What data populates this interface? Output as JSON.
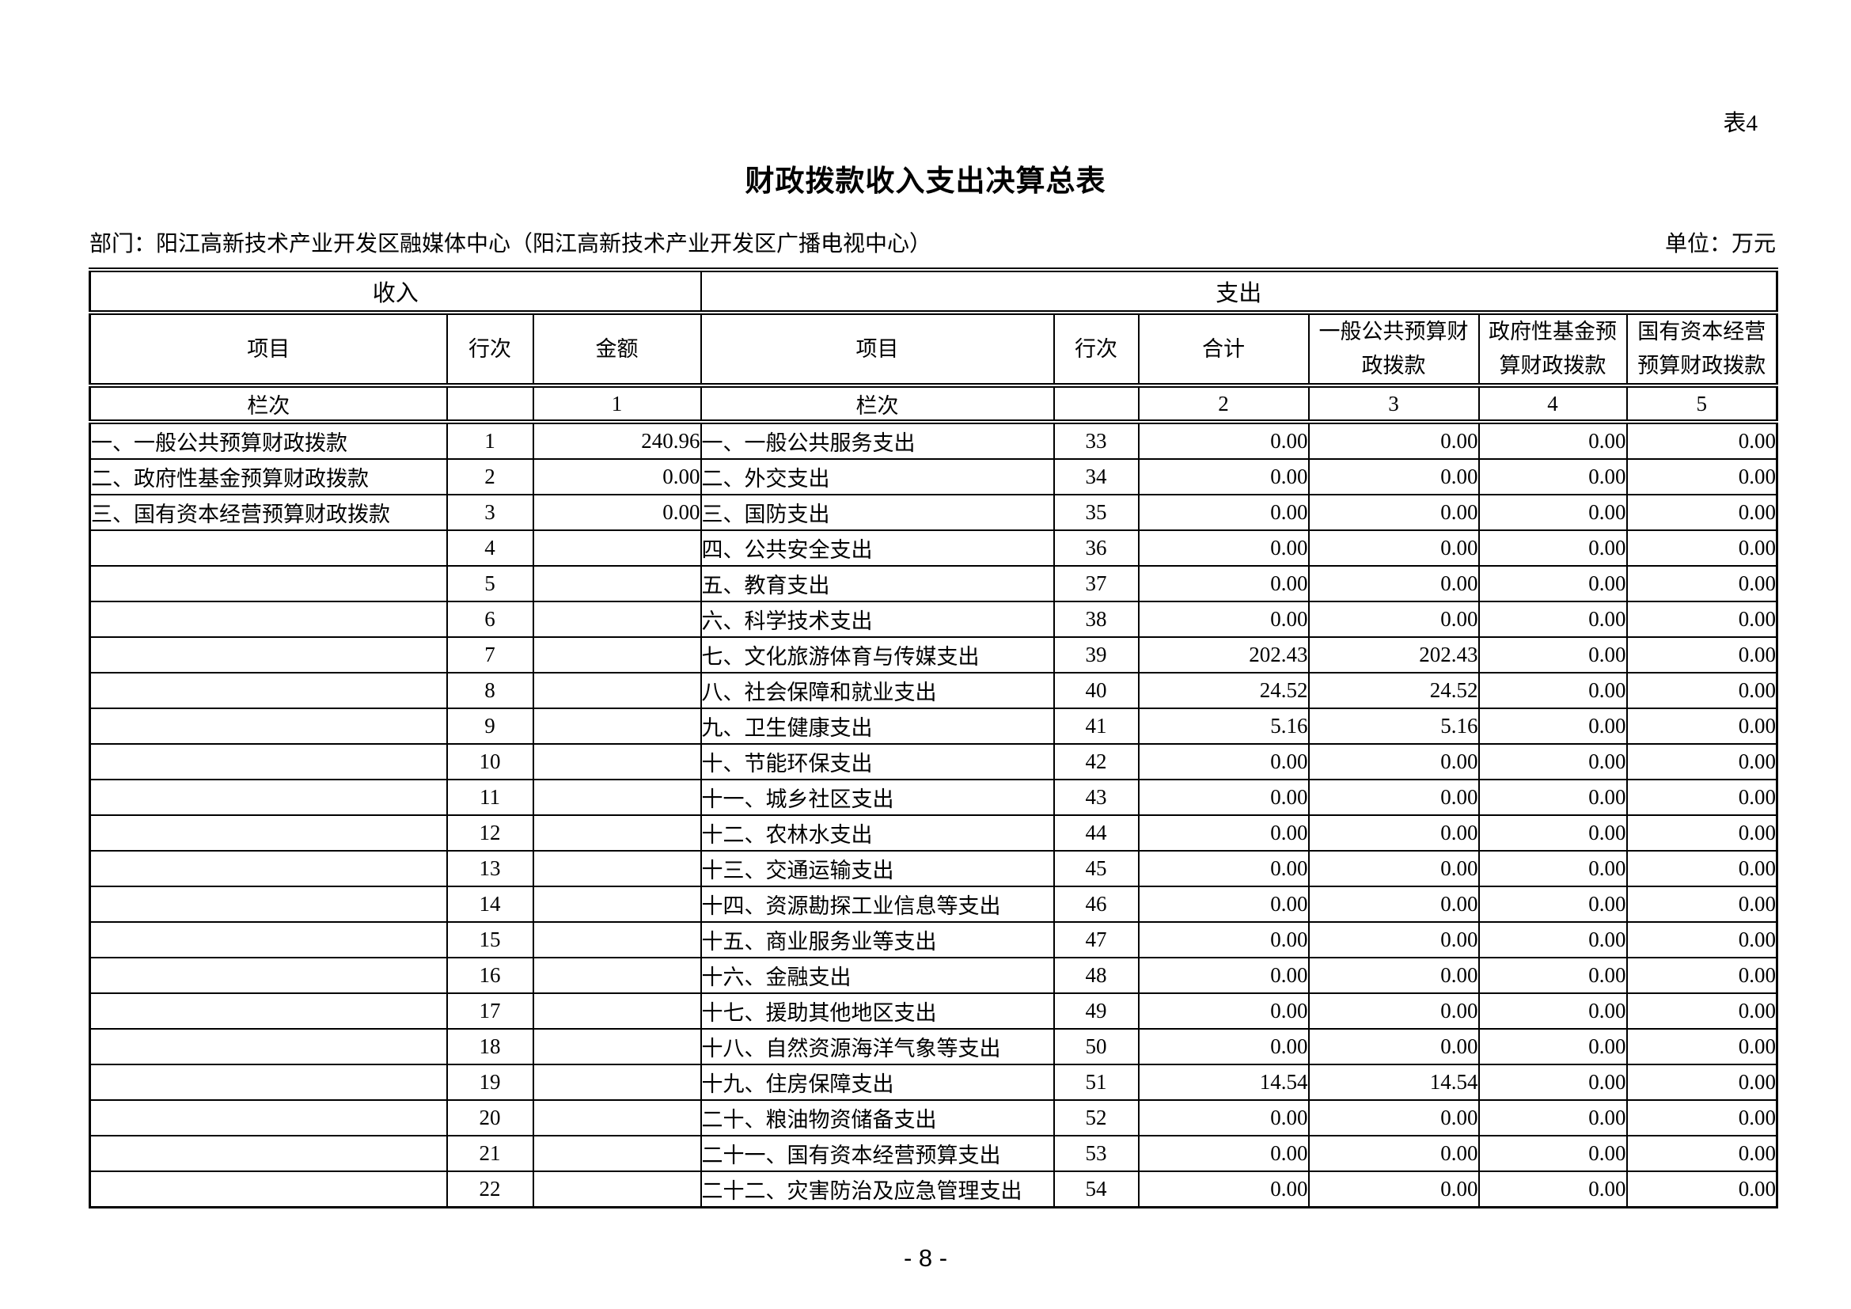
{
  "page": {
    "sheet_label": "表4",
    "title": "财政拨款收入支出决算总表",
    "department_label": "部门：阳江高新技术产业开发区融媒体中心（阳江高新技术产业开发区广播电视中心）",
    "unit_label": "单位：万元",
    "page_number": "- 8 -"
  },
  "table": {
    "sections": {
      "income": "收入",
      "expense": "支出"
    },
    "headers": {
      "income_item": "项目",
      "income_line": "行次",
      "income_amount": "金额",
      "expense_item": "项目",
      "expense_line": "行次",
      "expense_total": "合计",
      "expense_general": "一般公共预算财\n政拨款",
      "expense_gov_fund": "政府性基金预\n算财政拨款",
      "expense_state_capital": "国有资本经营\n预算财政拨款"
    },
    "column_index_row": [
      "栏次",
      "",
      "1",
      "栏次",
      "",
      "2",
      "3",
      "4",
      "5"
    ],
    "rows": [
      [
        "一、一般公共预算财政拨款",
        "1",
        "240.96",
        "一、一般公共服务支出",
        "33",
        "0.00",
        "0.00",
        "0.00",
        "0.00"
      ],
      [
        "二、政府性基金预算财政拨款",
        "2",
        "0.00",
        "二、外交支出",
        "34",
        "0.00",
        "0.00",
        "0.00",
        "0.00"
      ],
      [
        "三、国有资本经营预算财政拨款",
        "3",
        "0.00",
        "三、国防支出",
        "35",
        "0.00",
        "0.00",
        "0.00",
        "0.00"
      ],
      [
        "",
        "4",
        "",
        "四、公共安全支出",
        "36",
        "0.00",
        "0.00",
        "0.00",
        "0.00"
      ],
      [
        "",
        "5",
        "",
        "五、教育支出",
        "37",
        "0.00",
        "0.00",
        "0.00",
        "0.00"
      ],
      [
        "",
        "6",
        "",
        "六、科学技术支出",
        "38",
        "0.00",
        "0.00",
        "0.00",
        "0.00"
      ],
      [
        "",
        "7",
        "",
        "七、文化旅游体育与传媒支出",
        "39",
        "202.43",
        "202.43",
        "0.00",
        "0.00"
      ],
      [
        "",
        "8",
        "",
        "八、社会保障和就业支出",
        "40",
        "24.52",
        "24.52",
        "0.00",
        "0.00"
      ],
      [
        "",
        "9",
        "",
        "九、卫生健康支出",
        "41",
        "5.16",
        "5.16",
        "0.00",
        "0.00"
      ],
      [
        "",
        "10",
        "",
        "十、节能环保支出",
        "42",
        "0.00",
        "0.00",
        "0.00",
        "0.00"
      ],
      [
        "",
        "11",
        "",
        "十一、城乡社区支出",
        "43",
        "0.00",
        "0.00",
        "0.00",
        "0.00"
      ],
      [
        "",
        "12",
        "",
        "十二、农林水支出",
        "44",
        "0.00",
        "0.00",
        "0.00",
        "0.00"
      ],
      [
        "",
        "13",
        "",
        "十三、交通运输支出",
        "45",
        "0.00",
        "0.00",
        "0.00",
        "0.00"
      ],
      [
        "",
        "14",
        "",
        "十四、资源勘探工业信息等支出",
        "46",
        "0.00",
        "0.00",
        "0.00",
        "0.00"
      ],
      [
        "",
        "15",
        "",
        "十五、商业服务业等支出",
        "47",
        "0.00",
        "0.00",
        "0.00",
        "0.00"
      ],
      [
        "",
        "16",
        "",
        "十六、金融支出",
        "48",
        "0.00",
        "0.00",
        "0.00",
        "0.00"
      ],
      [
        "",
        "17",
        "",
        "十七、援助其他地区支出",
        "49",
        "0.00",
        "0.00",
        "0.00",
        "0.00"
      ],
      [
        "",
        "18",
        "",
        "十八、自然资源海洋气象等支出",
        "50",
        "0.00",
        "0.00",
        "0.00",
        "0.00"
      ],
      [
        "",
        "19",
        "",
        "十九、住房保障支出",
        "51",
        "14.54",
        "14.54",
        "0.00",
        "0.00"
      ],
      [
        "",
        "20",
        "",
        "二十、粮油物资储备支出",
        "52",
        "0.00",
        "0.00",
        "0.00",
        "0.00"
      ],
      [
        "",
        "21",
        "",
        "二十一、国有资本经营预算支出",
        "53",
        "0.00",
        "0.00",
        "0.00",
        "0.00"
      ],
      [
        "",
        "22",
        "",
        "二十二、灾害防治及应急管理支出",
        "54",
        "0.00",
        "0.00",
        "0.00",
        "0.00"
      ]
    ]
  }
}
